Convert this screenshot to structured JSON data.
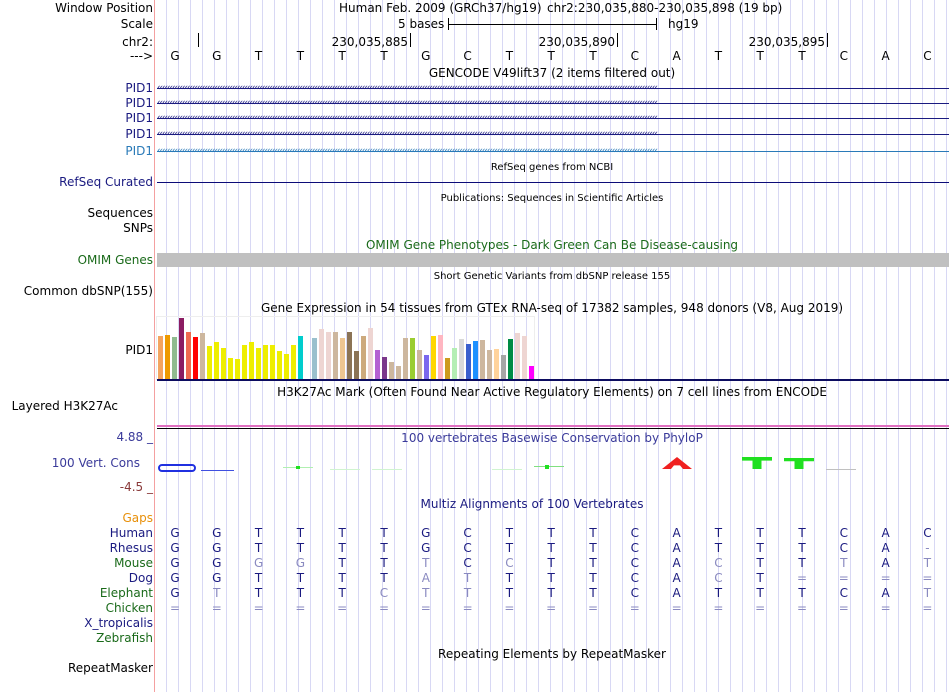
{
  "labels": {
    "window_position": "Window Position",
    "scale": "Scale",
    "chr": "chr2:",
    "strand": "--->",
    "refseq": "RefSeq Curated",
    "sequences": "Sequences",
    "snps": "SNPs",
    "omim": "OMIM Genes",
    "dbsnp": "Common dbSNP(155)",
    "gtex": "PID1",
    "h3k27ac": "Layered H3K27Ac",
    "cons": "100 Vert. Cons",
    "cons_max": "4.88 _",
    "cons_min": "-4.5 _",
    "gaps": "Gaps",
    "repeatmasker": "RepeatMasker"
  },
  "header": {
    "assembly": "Human Feb. 2009 (GRCh37/hg19)",
    "position": "chr2:230,035,880-230,035,898 (19 bp)",
    "scale_label": "5 bases",
    "scale_db": "hg19",
    "ticks": [
      "230,035,885",
      "230,035,890",
      "230,035,895"
    ]
  },
  "bases": [
    "G",
    "G",
    "T",
    "T",
    "T",
    "T",
    "G",
    "C",
    "T",
    "T",
    "T",
    "C",
    "A",
    "T",
    "T",
    "T",
    "C",
    "A",
    "C"
  ],
  "titles": {
    "gencode": "GENCODE V49lift37 (2 items filtered out)",
    "refseq": "RefSeq genes from NCBI",
    "publications": "Publications: Sequences in Scientific Articles",
    "omim": "OMIM Gene Phenotypes - Dark Green Can Be Disease-causing",
    "snp": "Short Genetic Variants from dbSNP release 155",
    "gtex": "Gene Expression in 54 tissues from GTEx RNA-seq of 17382 samples, 948 donors (V8, Aug 2019)",
    "h3k27ac": "H3K27Ac Mark (Often Found Near Active Regulatory Elements) on 7 cell lines from ENCODE",
    "cons": "100 vertebrates Basewise Conservation by PhyloP",
    "multiz": "Multiz Alignments of 100 Vertebrates",
    "repeat": "Repeating Elements by RepeatMasker"
  },
  "gencode_genes": [
    "PID1",
    "PID1",
    "PID1",
    "PID1",
    "PID1"
  ],
  "gtex": {
    "values": [
      45,
      46,
      44,
      63,
      49,
      44,
      48,
      35,
      39,
      33,
      22,
      21,
      36,
      39,
      33,
      36,
      36,
      29,
      26,
      36,
      45,
      0.5,
      43,
      52,
      49,
      49,
      43,
      49,
      29,
      45,
      53,
      31,
      23,
      18,
      14,
      43,
      43,
      31,
      25,
      45,
      46,
      22,
      33,
      42,
      37,
      40,
      41,
      31,
      32,
      25,
      42,
      48,
      45,
      14
    ],
    "colors": [
      "#f4a460",
      "#ee9a00",
      "#8fbc8f",
      "#8b1c62",
      "#ee6a50",
      "#ff0000",
      "#cdb79e",
      "#eeee00",
      "#eeee00",
      "#eeee00",
      "#eeee00",
      "#eeee00",
      "#eeee00",
      "#eeee00",
      "#eeee00",
      "#eeee00",
      "#eeee00",
      "#eeee00",
      "#eeee00",
      "#eeee00",
      "#00cdcd",
      "#cccccc",
      "#9ac0cd",
      "#eed5d2",
      "#eed5d2",
      "#cdb79e",
      "#eec591",
      "#8b7355",
      "#8b7355",
      "#cdaa7d",
      "#eed5d2",
      "#b460d2",
      "#7a378b",
      "#cdb79e",
      "#cdb79e",
      "#cdb79e",
      "#9acd32",
      "#cdb79e",
      "#7b68ee",
      "#ffd700",
      "#ffb6c1",
      "#cd9b1d",
      "#b4eeb4",
      "#d9d9d9",
      "#3a5fcd",
      "#1e90ff",
      "#cdb79e",
      "#cdb79e",
      "#ffd39b",
      "#a6a6a6",
      "#008b45",
      "#eed5d2",
      "#eed5d2",
      "#ff00ff"
    ]
  },
  "alignment": [
    {
      "species": "Human",
      "color": "navy",
      "seq": [
        "G",
        "G",
        "T",
        "T",
        "T",
        "T",
        "G",
        "C",
        "T",
        "T",
        "T",
        "C",
        "A",
        "T",
        "T",
        "T",
        "C",
        "A",
        "C"
      ],
      "dim": []
    },
    {
      "species": "Rhesus",
      "color": "navy",
      "seq": [
        "G",
        "G",
        "T",
        "T",
        "T",
        "T",
        "G",
        "C",
        "T",
        "T",
        "T",
        "C",
        "A",
        "T",
        "T",
        "T",
        "C",
        "A",
        "-"
      ],
      "dim": [
        18
      ]
    },
    {
      "species": "Mouse",
      "color": "green",
      "seq": [
        "G",
        "G",
        "G",
        "G",
        "T",
        "T",
        "T",
        "C",
        "C",
        "T",
        "T",
        "C",
        "A",
        "C",
        "T",
        "T",
        "T",
        "A",
        "T"
      ],
      "dim": [
        2,
        3,
        6,
        8,
        13,
        16,
        18
      ]
    },
    {
      "species": "Dog",
      "color": "navy",
      "seq": [
        "G",
        "G",
        "T",
        "T",
        "T",
        "T",
        "A",
        "T",
        "T",
        "T",
        "T",
        "C",
        "A",
        "C",
        "T",
        "=",
        "=",
        "=",
        "="
      ],
      "dim": [
        6,
        7,
        13,
        15,
        16,
        17,
        18
      ]
    },
    {
      "species": "Elephant",
      "color": "green",
      "seq": [
        "G",
        "T",
        "T",
        "T",
        "T",
        "C",
        "T",
        "T",
        "T",
        "T",
        "T",
        "C",
        "A",
        "T",
        "T",
        "T",
        "C",
        "A",
        "T"
      ],
      "dim": [
        1,
        5,
        6,
        7,
        18
      ]
    },
    {
      "species": "Chicken",
      "color": "green",
      "seq": [
        "=",
        "=",
        "=",
        "=",
        "=",
        "=",
        "=",
        "=",
        "=",
        "=",
        "=",
        "=",
        "=",
        "=",
        "=",
        "=",
        "=",
        "=",
        "="
      ],
      "dim": [
        0,
        1,
        2,
        3,
        4,
        5,
        6,
        7,
        8,
        9,
        10,
        11,
        12,
        13,
        14,
        15,
        16,
        17,
        18
      ]
    },
    {
      "species": "X_tropicalis",
      "color": "navy",
      "seq": [],
      "dim": []
    },
    {
      "species": "Zebrafish",
      "color": "green",
      "seq": [],
      "dim": []
    }
  ],
  "colors": {
    "navy": "#1a1a80",
    "green": "#1a6a1a",
    "gaps": "#e8900a",
    "cons_label": "#3a3a9a",
    "refseq_line": "#0c0c78",
    "omim_bar": "#c0c0c0"
  }
}
